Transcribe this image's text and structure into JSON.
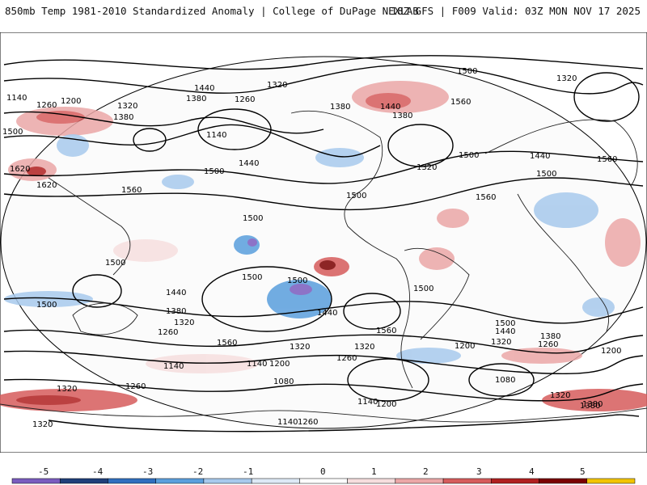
{
  "header": {
    "title": "850mb Temp 1981-2010 Standardized Anomaly | College of DuPage NEXLAB",
    "run_info": "18Z GFS | F009 Valid: 03Z MON NOV 17 2025"
  },
  "colorbar": {
    "tick_labels": [
      "-5",
      "-4",
      "-3",
      "-2",
      "-1",
      "0",
      "1",
      "2",
      "3",
      "4",
      "5"
    ],
    "colors": [
      "#7a5cbf",
      "#1f3f7a",
      "#2f6fbf",
      "#5a9fdd",
      "#a7c9ec",
      "#dde9f6",
      "#ffffff",
      "#f6dede",
      "#eba7a7",
      "#d65c5c",
      "#b02020",
      "#7a0000",
      "#f2c400"
    ]
  },
  "map": {
    "contour_labels": [
      "1140",
      "1260",
      "1200",
      "1440",
      "1320",
      "1380",
      "1500",
      "1440",
      "1380",
      "1260",
      "1320",
      "1140",
      "1560",
      "1500",
      "1380",
      "1560",
      "1320",
      "1500",
      "1440",
      "1620",
      "1620",
      "1560",
      "1500",
      "1500",
      "1500",
      "1500",
      "1440",
      "1380",
      "1320",
      "1500",
      "1260",
      "1140",
      "1200",
      "1080",
      "1320",
      "1260",
      "1140",
      "1320",
      "1500",
      "1440",
      "1380",
      "1320",
      "1260",
      "1200",
      "1080",
      "1200",
      "1260",
      "1320",
      "1380",
      "1140",
      "1260",
      "1320",
      "1500",
      "1440",
      "1560",
      "1500",
      "1500",
      "1200",
      "1320",
      "1560",
      "1560",
      "1380",
      "1440",
      "1140",
      "1320",
      "1500",
      "1380"
    ]
  }
}
